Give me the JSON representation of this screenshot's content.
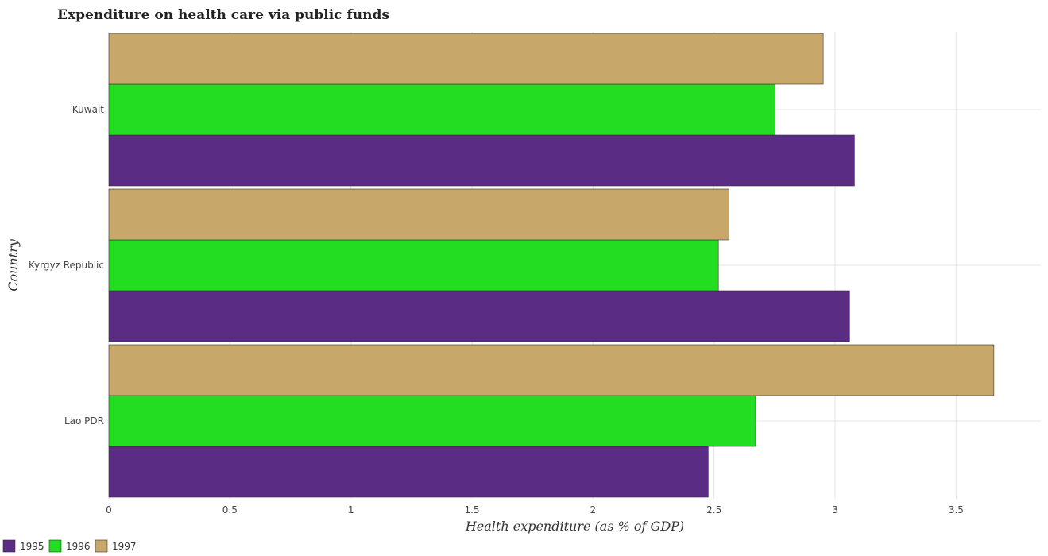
{
  "chart_data": {
    "type": "bar",
    "orientation": "horizontal",
    "title": "Expenditure on health care via public funds",
    "xlabel": "Health expenditure (as % of GDP)",
    "ylabel": "Country",
    "categories": [
      "Kuwait",
      "Kyrgyz Republic",
      "Lao PDR"
    ],
    "series": [
      {
        "name": "1995",
        "color": "#5b2c83",
        "values": [
          3.08,
          3.06,
          2.476
        ]
      },
      {
        "name": "1996",
        "color": "#22dd22",
        "values": [
          2.753,
          2.518,
          2.672
        ]
      },
      {
        "name": "1997",
        "color": "#c8a86a",
        "values": [
          2.951,
          2.561,
          3.656
        ]
      }
    ],
    "xlim": [
      0,
      3.85
    ],
    "xticks": [
      0,
      0.5,
      1,
      1.5,
      2,
      2.5,
      3,
      3.5
    ],
    "xtick_labels": [
      "0",
      "0.5",
      "1",
      "1.5",
      "2",
      "2.5",
      "3",
      "3.5"
    ],
    "grid": true,
    "legend_position": "bottom-left"
  }
}
